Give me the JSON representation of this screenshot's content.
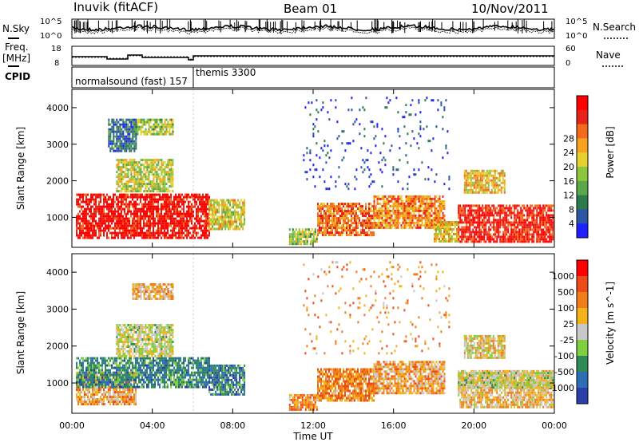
{
  "header": {
    "site": "Inuvik (fitACF)",
    "beam": "Beam 01",
    "date": "10/Nov/2011"
  },
  "left_labels": {
    "nsky": "N.Sky",
    "freq": "Freq.",
    "mhz": "[MHz]",
    "cpid": "CPID"
  },
  "right_labels": {
    "nsearch": "N.Search",
    "nave": "Nave"
  },
  "noise_axis": {
    "left_ticks": [
      "10^5",
      "10^0"
    ],
    "right_ticks": [
      "10^5",
      "10^0"
    ]
  },
  "freq_axis": {
    "left_ticks": [
      "18",
      "8"
    ],
    "right_ticks": [
      "60",
      "0"
    ]
  },
  "cpid": {
    "segments": [
      {
        "label": "normalsound (fast) 157",
        "start_hour": 0,
        "end_hour": 6
      },
      {
        "label": "themis 3300",
        "start_hour": 6,
        "end_hour": 24
      }
    ]
  },
  "chart_data": [
    {
      "type": "heatmap",
      "panel": "power",
      "ylabel": "Slant Range [km]",
      "xlabel": "Time UT",
      "x_ticks": [
        "00:00",
        "04:00",
        "08:00",
        "12:00",
        "16:00",
        "20:00",
        "00:00"
      ],
      "xlim_hours": [
        0,
        24
      ],
      "y_ticks": [
        1000,
        2000,
        3000,
        4000
      ],
      "ylim_km": [
        180,
        4500
      ],
      "colorbar": {
        "label": "Power [dB]",
        "ticks": [
          "4",
          "8",
          "12",
          "16",
          "20",
          "24",
          "28"
        ],
        "colors": [
          "#1f1fff",
          "#2b56a5",
          "#2d7a4b",
          "#5aa84a",
          "#8cc63f",
          "#e6d02e",
          "#f5a21e",
          "#f26a1b",
          "#e8231c",
          "#ff0000"
        ]
      },
      "regions": [
        {
          "t0": 0.2,
          "t1": 6.8,
          "r0": 450,
          "r1": 1650,
          "level": 0.92
        },
        {
          "t0": 6.8,
          "t1": 8.6,
          "r0": 700,
          "r1": 1500,
          "level": 0.55
        },
        {
          "t0": 10.8,
          "t1": 12.2,
          "r0": 250,
          "r1": 700,
          "level": 0.45
        },
        {
          "t0": 12.2,
          "t1": 15.0,
          "r0": 500,
          "r1": 1400,
          "level": 0.75
        },
        {
          "t0": 15.0,
          "t1": 18.5,
          "r0": 700,
          "r1": 1600,
          "level": 0.7
        },
        {
          "t0": 18.0,
          "t1": 19.2,
          "r0": 350,
          "r1": 900,
          "level": 0.6
        },
        {
          "t0": 19.2,
          "t1": 23.9,
          "r0": 350,
          "r1": 1350,
          "level": 0.88
        },
        {
          "t0": 2.2,
          "t1": 5.0,
          "r0": 1700,
          "r1": 2600,
          "level": 0.5
        },
        {
          "t0": 3.0,
          "t1": 5.0,
          "r0": 3300,
          "r1": 3700,
          "level": 0.45
        },
        {
          "t0": 1.8,
          "t1": 3.2,
          "r0": 2800,
          "r1": 3700,
          "level": 0.2
        },
        {
          "t0": 19.5,
          "t1": 21.5,
          "r0": 1700,
          "r1": 2300,
          "level": 0.6
        },
        {
          "t0": 11.5,
          "t1": 18.8,
          "r0": 1800,
          "r1": 4300,
          "level": 0.12,
          "sparse": true
        }
      ]
    },
    {
      "type": "heatmap",
      "panel": "velocity",
      "ylabel": "Slant Range [km]",
      "xlabel": "Time UT",
      "x_ticks": [
        "00:00",
        "04:00",
        "08:00",
        "12:00",
        "16:00",
        "20:00",
        "00:00"
      ],
      "xlim_hours": [
        0,
        24
      ],
      "y_ticks": [
        1000,
        2000,
        3000,
        4000
      ],
      "ylim_km": [
        180,
        4500
      ],
      "colorbar": {
        "label": "Velocity [m s^-1]",
        "ticks": [
          "1000",
          "500",
          "100",
          "25",
          "-25",
          "-100",
          "-500",
          "-1000"
        ],
        "colors": [
          "#2a3fa8",
          "#2e6fb3",
          "#2e8b57",
          "#7fcf3f",
          "#c8c8c8",
          "#f3b21a",
          "#f07d1a",
          "#ee4b1a",
          "#ff0000"
        ]
      },
      "regions": [
        {
          "t0": 0.2,
          "t1": 3.2,
          "r0": 450,
          "r1": 1300,
          "level": 0.65
        },
        {
          "t0": 0.2,
          "t1": 6.8,
          "r0": 900,
          "r1": 1700,
          "level": 0.25
        },
        {
          "t0": 6.8,
          "t1": 8.6,
          "r0": 700,
          "r1": 1500,
          "level": 0.2
        },
        {
          "t0": 10.8,
          "t1": 12.2,
          "r0": 250,
          "r1": 700,
          "level": 0.7
        },
        {
          "t0": 12.2,
          "t1": 15.0,
          "r0": 500,
          "r1": 1400,
          "level": 0.7
        },
        {
          "t0": 15.0,
          "t1": 18.5,
          "r0": 700,
          "r1": 1600,
          "level": 0.65
        },
        {
          "t0": 19.2,
          "t1": 23.9,
          "r0": 350,
          "r1": 1350,
          "level": 0.6
        },
        {
          "t0": 19.2,
          "t1": 23.9,
          "r0": 900,
          "r1": 1300,
          "level": 0.48
        },
        {
          "t0": 2.2,
          "t1": 5.0,
          "r0": 1700,
          "r1": 2600,
          "level": 0.48
        },
        {
          "t0": 3.0,
          "t1": 5.0,
          "r0": 3300,
          "r1": 3700,
          "level": 0.62
        },
        {
          "t0": 19.5,
          "t1": 21.5,
          "r0": 1700,
          "r1": 2300,
          "level": 0.55
        },
        {
          "t0": 11.5,
          "t1": 18.8,
          "r0": 1800,
          "r1": 4300,
          "level": 0.7,
          "sparse": true
        }
      ]
    }
  ]
}
